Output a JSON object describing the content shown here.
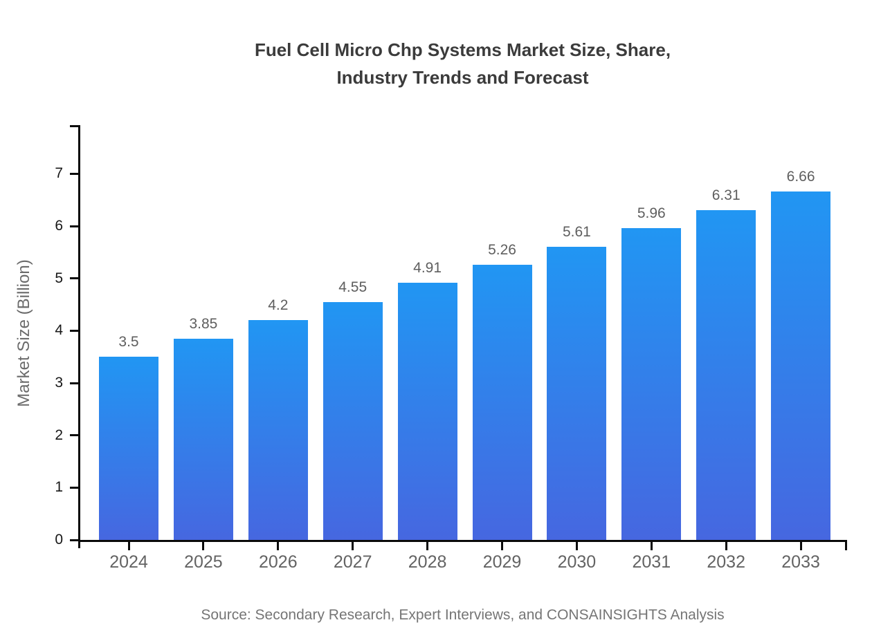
{
  "header": {
    "title_line1": "Fuel Cell Micro Chp Systems Market Size, Share,",
    "title_line2": "Industry Trends and Forecast"
  },
  "chart_data": {
    "type": "bar",
    "title": "Fuel Cell Micro Chp Systems Market Size, Share, Industry Trends and Forecast",
    "categories": [
      "2024",
      "2025",
      "2026",
      "2027",
      "2028",
      "2029",
      "2030",
      "2031",
      "2032",
      "2033"
    ],
    "values": [
      3.5,
      3.85,
      4.2,
      4.55,
      4.91,
      5.26,
      5.61,
      5.96,
      6.31,
      6.66
    ],
    "value_labels": [
      "3.5",
      "3.85",
      "4.2",
      "4.55",
      "4.91",
      "5.26",
      "5.61",
      "5.96",
      "6.31",
      "6.66"
    ],
    "xlabel": "",
    "ylabel": "Market Size (Billion)",
    "ylim": [
      0,
      7.93
    ],
    "yticks": [
      0,
      1,
      2,
      3,
      4,
      5,
      6,
      7
    ],
    "grid": false,
    "legend_position": "none",
    "colors": {
      "bar_gradient_top": "#2196f3",
      "bar_gradient_bottom": "#4667e0",
      "axis": "#0a0a0a",
      "title_text": "#3b3b3b",
      "value_label_text": "#5e5e5e",
      "x_tick_text": "#636363",
      "y_tick_text": "#171717",
      "y_axis_title_text": "#6b6b6b",
      "source_text": "#757575"
    }
  },
  "footer": {
    "source": "Source: Secondary Research, Expert Interviews, and CONSAINSIGHTS Analysis"
  }
}
